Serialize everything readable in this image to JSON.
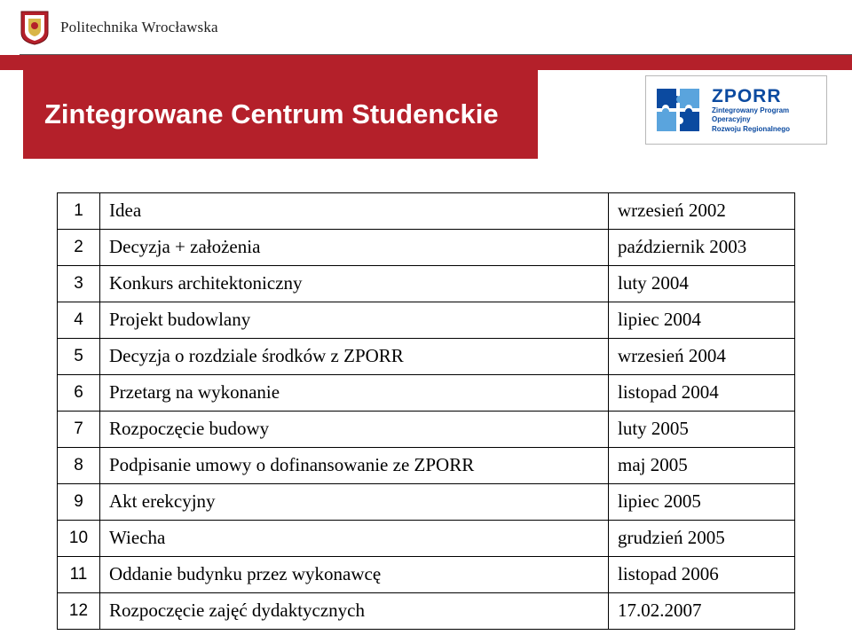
{
  "header": {
    "university_name": "Politechnika Wrocławska"
  },
  "title": "Zintegrowane Centrum Studenckie",
  "zporr": {
    "acronym": "ZPORR",
    "line1": "Zintegrowany Program",
    "line2": "Operacyjny",
    "line3": "Rozwoju Regionalnego"
  },
  "table": {
    "columns": {
      "num_width": 48,
      "date_width": 210
    },
    "rows": [
      {
        "n": "1",
        "desc": "Idea",
        "date": "wrzesień 2002"
      },
      {
        "n": "2",
        "desc": "Decyzja + założenia",
        "date": "październik 2003"
      },
      {
        "n": "3",
        "desc": "Konkurs architektoniczny",
        "date": "luty 2004"
      },
      {
        "n": "4",
        "desc": "Projekt budowlany",
        "date": "lipiec 2004"
      },
      {
        "n": "5",
        "desc": "Decyzja o rozdziale środków z ZPORR",
        "date": "wrzesień 2004"
      },
      {
        "n": "6",
        "desc": "Przetarg na wykonanie",
        "date": "listopad 2004"
      },
      {
        "n": "7",
        "desc": "Rozpoczęcie budowy",
        "date": "luty 2005"
      },
      {
        "n": "8",
        "desc": "Podpisanie umowy o dofinansowanie ze ZPORR",
        "date": "maj 2005"
      },
      {
        "n": "9",
        "desc": "Akt erekcyjny",
        "date": "lipiec 2005"
      },
      {
        "n": "10",
        "desc": "Wiecha",
        "date": "grudzień 2005"
      },
      {
        "n": "11",
        "desc": "Oddanie budynku przez wykonawcę",
        "date": "listopad 2006"
      },
      {
        "n": "12",
        "desc": "Rozpoczęcie zajęć dydaktycznych",
        "date": "17.02.2007"
      }
    ]
  },
  "colors": {
    "red": "#b4202a",
    "blue": "#0b4aa0",
    "blue_light": "#5aa4dd",
    "border_gray": "#b8b8b8"
  }
}
